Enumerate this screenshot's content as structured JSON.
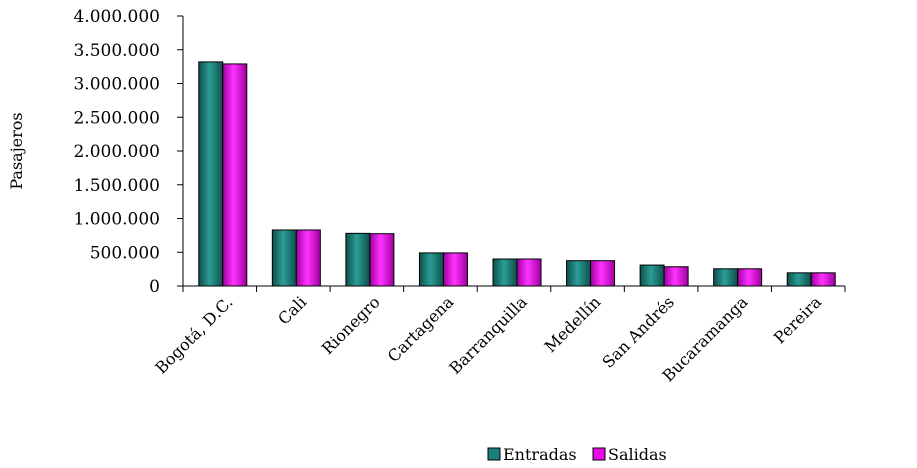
{
  "chart_data": {
    "type": "bar",
    "title": "",
    "xlabel": "",
    "ylabel": "Pasajeros",
    "ylim": [
      0,
      4000000
    ],
    "yticks": [
      0,
      500000,
      1000000,
      1500000,
      2000000,
      2500000,
      3000000,
      3500000,
      4000000
    ],
    "ytick_labels": [
      "0",
      "500.000",
      "1.000.000",
      "1.500.000",
      "2.000.000",
      "2.500.000",
      "3.000.000",
      "3.500.000",
      "4.000.000"
    ],
    "categories": [
      "Bogotá, D.C.",
      "Cali",
      "Rionegro",
      "Cartagena",
      "Barranquilla",
      "Medellín",
      "San Andrés",
      "Bucaramanga",
      "Pereira"
    ],
    "series": [
      {
        "name": "Entradas",
        "color": "#1a7f7a",
        "values": [
          3320000,
          830000,
          780000,
          490000,
          400000,
          375000,
          310000,
          255000,
          195000
        ]
      },
      {
        "name": "Salidas",
        "color": "#e80ae8",
        "values": [
          3290000,
          830000,
          775000,
          490000,
          400000,
          375000,
          285000,
          255000,
          195000
        ]
      }
    ],
    "grid": false,
    "legend_position": "bottom"
  }
}
